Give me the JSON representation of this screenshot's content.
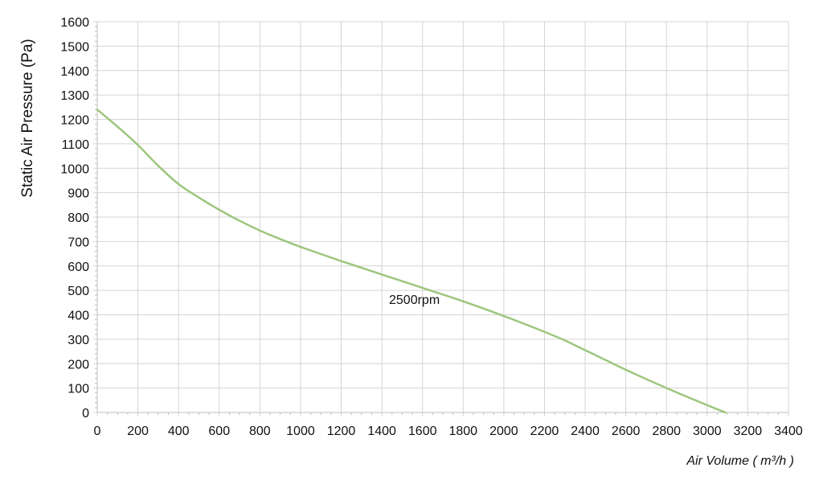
{
  "chart_data": {
    "type": "line",
    "xlabel": "Air Volume ( m³/h )",
    "ylabel": "Static Air Pressure  (Pa)",
    "xlim": [
      0,
      3400
    ],
    "ylim": [
      0,
      1600
    ],
    "x_ticks": [
      0,
      200,
      400,
      600,
      800,
      1000,
      1200,
      1400,
      1600,
      1800,
      2000,
      2200,
      2400,
      2600,
      2800,
      3000,
      3200,
      3400
    ],
    "y_ticks": [
      0,
      100,
      200,
      300,
      400,
      500,
      600,
      700,
      800,
      900,
      1000,
      1100,
      1200,
      1300,
      1400,
      1500,
      1600
    ],
    "grid": true,
    "minor_ticks": true,
    "series": [
      {
        "name": "2500rpm",
        "color": "#9dc67e",
        "x": [
          0,
          100,
          200,
          300,
          400,
          500,
          600,
          700,
          800,
          900,
          1000,
          1200,
          1400,
          1600,
          1800,
          2000,
          2200,
          2300,
          2400,
          2600,
          2800,
          3000,
          3090
        ],
        "y": [
          1240,
          1170,
          1095,
          1010,
          935,
          880,
          830,
          785,
          745,
          710,
          678,
          620,
          565,
          510,
          455,
          395,
          330,
          295,
          255,
          175,
          100,
          30,
          0
        ]
      }
    ],
    "annotations": [
      {
        "text": "2500rpm",
        "x": 1560,
        "y": 445
      }
    ]
  }
}
